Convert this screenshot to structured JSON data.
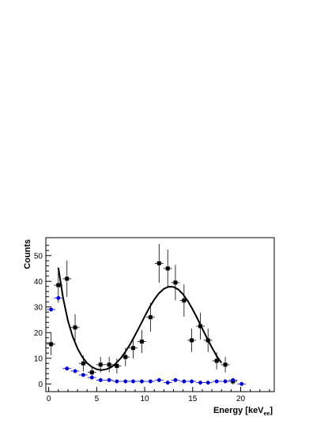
{
  "chart_data": {
    "type": "scatter",
    "xlabel": "Energy [keV",
    "xlabel_sub": "ee",
    "xlabel_close": "]",
    "ylabel": "Counts",
    "xlim": [
      -0.3,
      23.5
    ],
    "ylim": [
      -3,
      57
    ],
    "x_ticks": [
      0,
      5,
      10,
      15,
      20
    ],
    "y_ticks": [
      0,
      10,
      20,
      30,
      40,
      50
    ],
    "grid": false,
    "legend": "none",
    "series": [
      {
        "marker": "square",
        "color": "#000000",
        "x": [
          0.25,
          1.0,
          1.9,
          2.75,
          3.6,
          4.5,
          5.4,
          6.3,
          7.1,
          8.0,
          8.8,
          9.7,
          10.6,
          11.5,
          12.4,
          13.2,
          14.1,
          14.9,
          15.8,
          16.6,
          17.5,
          18.4,
          19.2
        ],
        "y": [
          15.5,
          38.5,
          41,
          22,
          8,
          4.5,
          7.5,
          7.5,
          7,
          10.5,
          14,
          16.5,
          26,
          47,
          45,
          39.5,
          32.5,
          17,
          22.5,
          17,
          9,
          7.5,
          1
        ]
      },
      {
        "marker": "circle",
        "color": "#0000cc",
        "x": [
          0.25,
          1.0,
          1.9,
          2.75,
          3.6,
          4.5,
          5.4,
          6.3,
          7.1,
          8.0,
          8.8,
          9.7,
          10.6,
          11.5,
          12.4,
          13.2,
          14.1,
          14.9,
          15.8,
          16.6,
          17.5,
          18.4,
          19.2,
          20.1
        ],
        "y": [
          29,
          33.5,
          6,
          5,
          3.5,
          2.5,
          1.5,
          1.5,
          1,
          1,
          1,
          1,
          1,
          1.5,
          0.5,
          1.5,
          1,
          1,
          0.5,
          0.5,
          1,
          1,
          1.5,
          0
        ]
      },
      {
        "type": "line",
        "color": "#000000",
        "x": [
          1.0,
          1.5,
          2.0,
          2.5,
          3.0,
          3.5,
          4.0,
          4.5,
          5.0,
          5.5,
          6.0,
          6.5,
          7.0,
          7.5,
          8.0,
          8.5,
          9.0,
          9.5,
          10.0,
          10.5,
          11.0,
          11.5,
          12.0,
          12.5,
          13.0,
          13.5,
          14.0,
          14.5,
          15.0,
          15.5,
          16.0,
          16.5,
          17.0,
          17.5,
          18.0
        ],
        "y": [
          45.3,
          33.4,
          24.7,
          18.4,
          13.8,
          10.5,
          8.1,
          6.6,
          5.7,
          5.4,
          5.7,
          6.5,
          8.0,
          10.0,
          12.6,
          15.6,
          19.0,
          22.6,
          26.3,
          29.8,
          32.9,
          35.4,
          37.1,
          37.9,
          37.8,
          36.8,
          34.9,
          32.3,
          29.0,
          25.4,
          21.6,
          17.8,
          14.2,
          10.9,
          8.2
        ]
      }
    ]
  }
}
